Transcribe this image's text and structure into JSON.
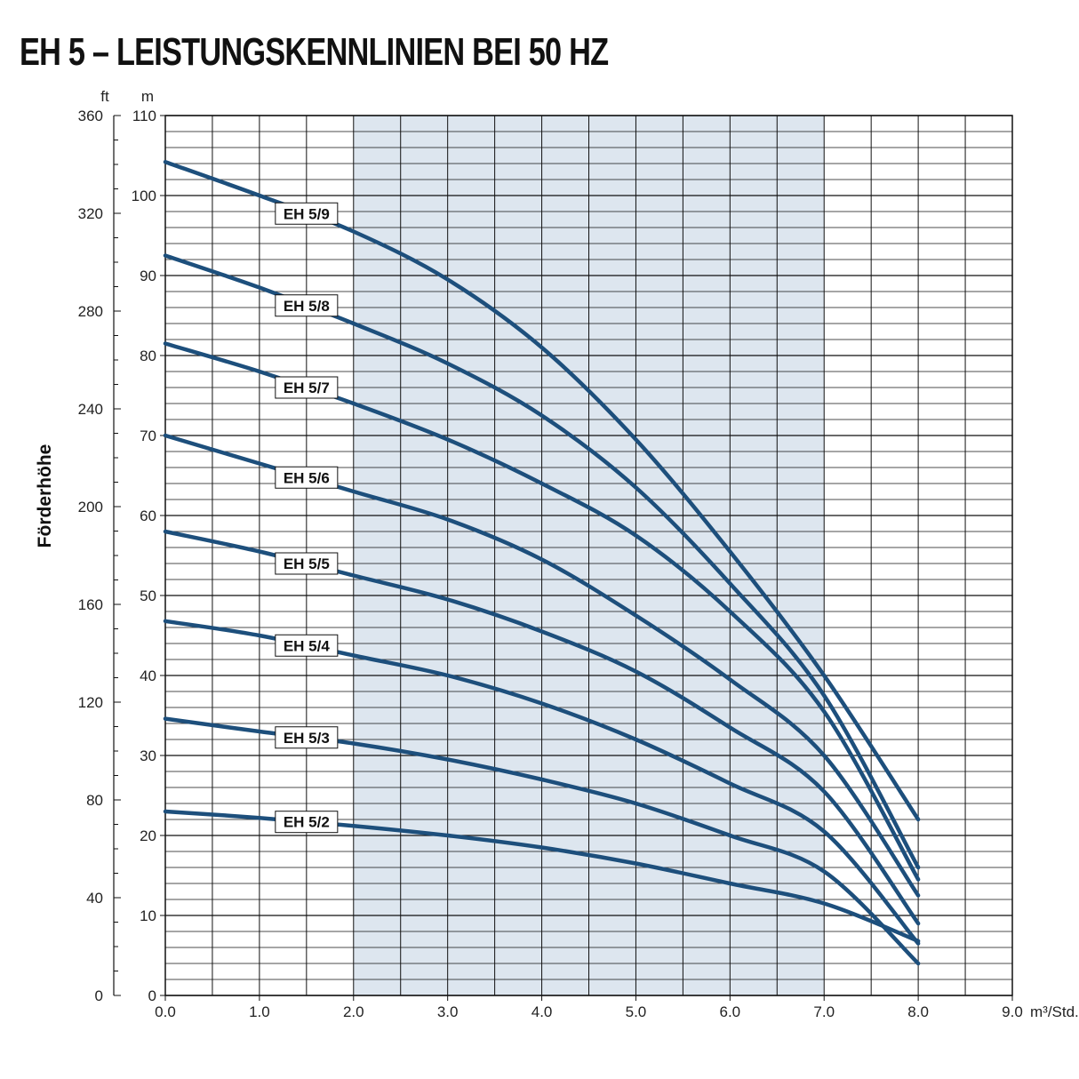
{
  "page": {
    "title": "EH 5 – LEISTUNGSKENNLINIEN BEI 50 HZ"
  },
  "chart_data": {
    "type": "line",
    "title": "EH 5 – LEISTUNGSKENNLINIEN BEI 50 HZ",
    "ylabel": "Förderhöhe",
    "y_unit": "m",
    "y2_unit": "ft",
    "x_unit": "m³/Std.",
    "xlim": [
      0,
      9
    ],
    "ylim": [
      0,
      110
    ],
    "y2lim": [
      0,
      360
    ],
    "x_ticks": [
      "0.0",
      "1.0",
      "2.0",
      "3.0",
      "4.0",
      "5.0",
      "6.0",
      "7.0",
      "8.0",
      "9.0"
    ],
    "y_ticks": [
      "0",
      "10",
      "20",
      "30",
      "40",
      "50",
      "60",
      "70",
      "80",
      "90",
      "100",
      "110"
    ],
    "y2_ticks": [
      "0",
      "40",
      "80",
      "120",
      "160",
      "200",
      "240",
      "280",
      "320",
      "360"
    ],
    "grid": true,
    "shaded_range_x": [
      2.0,
      7.0
    ],
    "colors": {
      "curve": "#1d4f7c",
      "shade": "#dde6ef",
      "grid": "#111111"
    },
    "series": [
      {
        "name": "EH 5/9",
        "x": [
          0,
          1,
          2,
          3,
          4,
          5,
          6,
          7,
          8
        ],
        "y": [
          104.2,
          100.0,
          95.5,
          89.5,
          81.0,
          69.5,
          55.5,
          40.0,
          22.0
        ]
      },
      {
        "name": "EH 5/8",
        "x": [
          0,
          1,
          2,
          3,
          4,
          5,
          6,
          7,
          8
        ],
        "y": [
          92.5,
          88.5,
          84.0,
          79.0,
          72.5,
          63.5,
          51.5,
          37.5,
          16.0
        ]
      },
      {
        "name": "EH 5/7",
        "x": [
          0,
          1,
          2,
          3,
          4,
          5,
          6,
          7,
          8
        ],
        "y": [
          81.5,
          78.0,
          74.0,
          69.5,
          64.0,
          57.5,
          48.0,
          35.5,
          14.5
        ]
      },
      {
        "name": "EH 5/6",
        "x": [
          0,
          1,
          2,
          3,
          4,
          5,
          6,
          7,
          8
        ],
        "y": [
          70.0,
          66.5,
          63.0,
          59.5,
          54.5,
          47.5,
          39.5,
          30.0,
          12.5
        ]
      },
      {
        "name": "EH 5/5",
        "x": [
          0,
          1,
          2,
          3,
          4,
          5,
          6,
          7,
          8
        ],
        "y": [
          58.0,
          55.5,
          52.5,
          49.5,
          45.5,
          40.5,
          33.5,
          25.5,
          9.0
        ]
      },
      {
        "name": "EH 5/4",
        "x": [
          0,
          1,
          2,
          3,
          4,
          5,
          6,
          7,
          8
        ],
        "y": [
          46.8,
          45.0,
          42.5,
          40.0,
          36.5,
          32.0,
          26.5,
          20.5,
          6.5
        ]
      },
      {
        "name": "EH 5/3",
        "x": [
          0,
          1,
          2,
          3,
          4,
          5,
          6,
          7,
          8
        ],
        "y": [
          34.6,
          33.0,
          31.5,
          29.5,
          27.0,
          24.0,
          20.0,
          15.5,
          4.0
        ]
      },
      {
        "name": "EH 5/2",
        "x": [
          0,
          1,
          2,
          3,
          4,
          5,
          6,
          7,
          8
        ],
        "y": [
          23.0,
          22.2,
          21.2,
          20.0,
          18.5,
          16.5,
          14.0,
          11.5,
          6.8
        ]
      }
    ]
  }
}
